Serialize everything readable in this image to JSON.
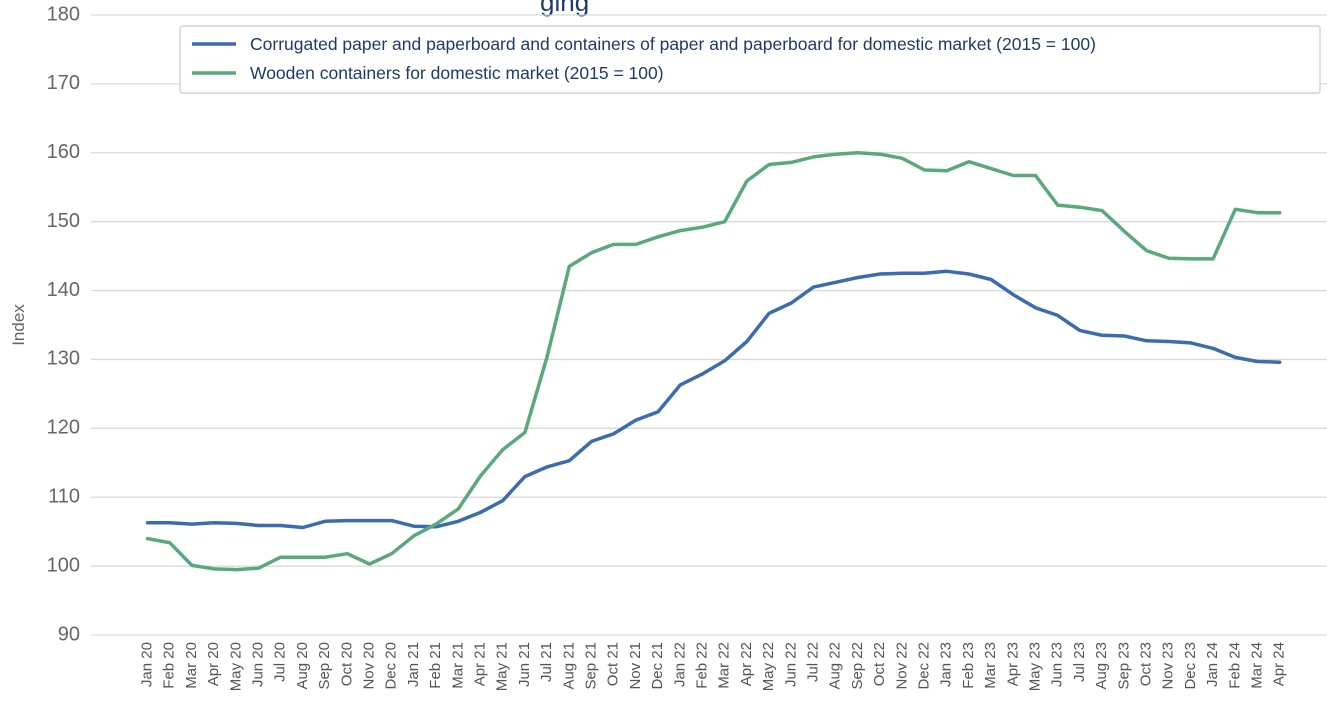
{
  "chart_data": {
    "type": "line",
    "title": "",
    "title_visible_fragment": "ging",
    "ylabel": "Index",
    "xlabel": "",
    "ylim": [
      90,
      180
    ],
    "yticks": [
      90,
      100,
      110,
      120,
      130,
      140,
      150,
      160,
      170,
      180
    ],
    "grid": "horizontal",
    "legend": "top-right",
    "categories": [
      "Jan 20",
      "Feb 20",
      "Mar 20",
      "Apr 20",
      "May 20",
      "Jun 20",
      "Jul 20",
      "Aug 20",
      "Sep 20",
      "Oct 20",
      "Nov 20",
      "Dec 20",
      "Jan 21",
      "Feb 21",
      "Mar 21",
      "Apr 21",
      "May 21",
      "Jun 21",
      "Jul 21",
      "Aug 21",
      "Sep 21",
      "Oct 21",
      "Nov 21",
      "Dec 21",
      "Jan 22",
      "Feb 22",
      "Mar 22",
      "Apr 22",
      "May 22",
      "Jun 22",
      "Jul 22",
      "Aug 22",
      "Sep 22",
      "Oct 22",
      "Nov 22",
      "Dec 22",
      "Jan 23",
      "Feb 23",
      "Mar 23",
      "Apr 23",
      "May 23",
      "Jun 23",
      "Jul 23",
      "Aug 23",
      "Sep 23",
      "Oct 23",
      "Nov 23",
      "Dec 23",
      "Jan 24",
      "Feb 24",
      "Mar 24",
      "Apr 24"
    ],
    "series": [
      {
        "name": "Corrugated paper and paperboard and containers of paper and paperboard for domestic market (2015 = 100)",
        "color": "#3b6cb0",
        "values": [
          106.3,
          106.3,
          106.1,
          106.3,
          106.2,
          105.9,
          105.9,
          105.6,
          106.5,
          106.6,
          106.6,
          106.6,
          105.8,
          105.7,
          106.5,
          107.8,
          109.5,
          113.0,
          114.4,
          115.3,
          118.1,
          119.2,
          121.2,
          122.4,
          126.3,
          127.9,
          129.8,
          132.6,
          136.7,
          138.2,
          140.5,
          141.2,
          141.9,
          142.4,
          142.5,
          142.5,
          142.8,
          142.4,
          141.6,
          139.4,
          137.5,
          136.4,
          134.2,
          133.5,
          133.4,
          132.7,
          132.6,
          132.4,
          131.6,
          130.3,
          129.7,
          129.6
        ]
      },
      {
        "name": "Wooden containers for domestic market (2015 = 100)",
        "color": "#5aa97a",
        "values": [
          104.0,
          103.4,
          100.1,
          99.6,
          99.5,
          99.7,
          101.3,
          101.3,
          101.3,
          101.8,
          100.3,
          101.8,
          104.4,
          106.1,
          108.3,
          113.1,
          116.9,
          119.4,
          130.4,
          143.5,
          145.5,
          146.7,
          146.7,
          147.8,
          148.7,
          149.2,
          150.0,
          155.9,
          158.3,
          158.6,
          159.4,
          159.8,
          160.0,
          159.8,
          159.2,
          157.5,
          157.4,
          158.7,
          157.7,
          156.7,
          156.7,
          152.4,
          152.1,
          151.6,
          148.6,
          145.8,
          144.7,
          144.6,
          144.6,
          151.8,
          151.3,
          151.3
        ]
      }
    ]
  }
}
